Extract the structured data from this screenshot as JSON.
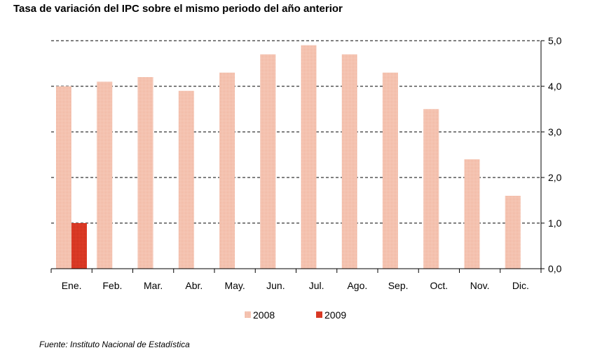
{
  "title": "Tasa de variación del IPC sobre el mismo periodo del año anterior",
  "source": "Fuente: Instituto Nacional de Estadística",
  "chart_data": {
    "type": "bar",
    "categories": [
      "Ene.",
      "Feb.",
      "Mar.",
      "Abr.",
      "May.",
      "Jun.",
      "Jul.",
      "Ago.",
      "Sep.",
      "Oct.",
      "Nov.",
      "Dic."
    ],
    "series": [
      {
        "name": "2008",
        "color": "#f2b8a4",
        "values": [
          4.0,
          4.1,
          4.2,
          3.9,
          4.3,
          4.7,
          4.9,
          4.7,
          4.3,
          3.5,
          2.4,
          1.6
        ]
      },
      {
        "name": "2009",
        "color": "#d9301f",
        "values": [
          1.0,
          null,
          null,
          null,
          null,
          null,
          null,
          null,
          null,
          null,
          null,
          null
        ]
      }
    ],
    "y_ticks": [
      "0,0",
      "1,0",
      "2,0",
      "3,0",
      "4,0",
      "5,0"
    ],
    "ylim": [
      0,
      5
    ],
    "y_axis_side": "right",
    "grid": "dashed horizontal",
    "legend": "bottom-center"
  }
}
